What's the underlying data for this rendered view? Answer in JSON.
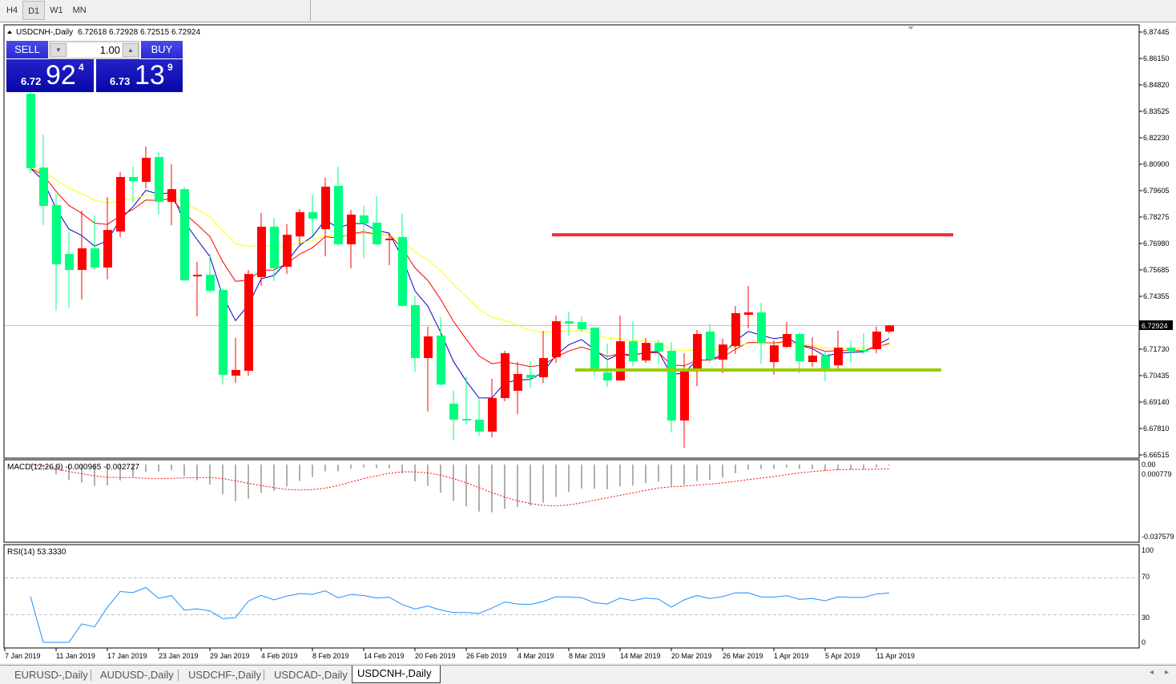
{
  "toolbar": {
    "timeframes": [
      "H4",
      "D1",
      "W1",
      "MN"
    ],
    "selected": "D1"
  },
  "chart": {
    "header": "USDCNH-,Daily",
    "ohlc": "6.72618 6.72928 6.72515 6.72924",
    "current_price_label": "6.72924",
    "price_axis": [
      "6.87445",
      "6.86150",
      "6.84820",
      "6.83525",
      "6.82230",
      "6.80900",
      "6.79605",
      "6.78275",
      "6.76980",
      "6.75685",
      "6.74355",
      "6.71730",
      "6.70435",
      "6.69140",
      "6.67810",
      "6.66515"
    ],
    "date_axis": [
      "7 Jan 2019",
      "11 Jan 2019",
      "17 Jan 2019",
      "23 Jan 2019",
      "29 Jan 2019",
      "4 Feb 2019",
      "8 Feb 2019",
      "14 Feb 2019",
      "20 Feb 2019",
      "26 Feb 2019",
      "4 Mar 2019",
      "8 Mar 2019",
      "14 Mar 2019",
      "20 Mar 2019",
      "26 Mar 2019",
      "1 Apr 2019",
      "5 Apr 2019",
      "11 Apr 2019"
    ],
    "colors": {
      "up": "#ff0000",
      "down": "#00ff7f",
      "ma_fast": "#0000cc",
      "ma_mid": "#ff0000",
      "ma_slow": "#ffff00",
      "resistance": "#f03030",
      "support": "#99cc00",
      "macd_hist": "#b0b0b0",
      "macd_signal": "#ff0000",
      "rsi": "#1e90ff"
    },
    "horizontal_lines": [
      {
        "price": 6.7741,
        "color": "#f03030"
      },
      {
        "price": 6.7072,
        "color": "#99cc00"
      }
    ],
    "candles": [
      [
        6.8439,
        6.8503,
        6.8047,
        6.8071
      ],
      [
        6.8074,
        6.8237,
        6.7789,
        6.7884
      ],
      [
        6.7888,
        6.7944,
        6.7365,
        6.7595
      ],
      [
        6.7646,
        6.7757,
        6.7381,
        6.7567
      ],
      [
        6.7567,
        6.786,
        6.742,
        6.7674
      ],
      [
        6.7674,
        6.7837,
        6.7571,
        6.7579
      ],
      [
        6.7579,
        6.7928,
        6.752,
        6.7765
      ],
      [
        6.7757,
        6.8051,
        6.773,
        6.8027
      ],
      [
        6.8027,
        6.8078,
        6.79,
        6.8007
      ],
      [
        6.8003,
        6.8178,
        6.7971,
        6.8122
      ],
      [
        6.8126,
        6.815,
        6.7841,
        6.7904
      ],
      [
        6.7904,
        6.809,
        6.7789,
        6.7967
      ],
      [
        6.7967,
        6.7979,
        6.7512,
        6.7516
      ],
      [
        6.7536,
        6.7607,
        6.7337,
        6.7543
      ],
      [
        6.7543,
        6.7646,
        6.7452,
        6.7464
      ],
      [
        6.7468,
        6.7476,
        6.7,
        6.7048
      ],
      [
        6.7044,
        6.723,
        6.7008,
        6.7072
      ],
      [
        6.7068,
        6.7567,
        6.7044,
        6.7547
      ],
      [
        6.7532,
        6.7849,
        6.7488,
        6.7781
      ],
      [
        6.7781,
        6.7825,
        6.7512,
        6.7575
      ],
      [
        6.7583,
        6.7793,
        6.7547,
        6.7741
      ],
      [
        6.7733,
        6.7868,
        6.7682,
        6.7853
      ],
      [
        6.7853,
        6.794,
        6.7737,
        6.7821
      ],
      [
        6.7769,
        6.8023,
        6.7634,
        6.7979
      ],
      [
        6.7983,
        6.8078,
        6.7686,
        6.7694
      ],
      [
        6.7694,
        6.7864,
        6.7575,
        6.7841
      ],
      [
        6.7837,
        6.7884,
        6.7626,
        6.7797
      ],
      [
        6.7801,
        6.7932,
        6.769,
        6.7694
      ],
      [
        6.7718,
        6.7749,
        6.7591,
        6.7722
      ],
      [
        6.773,
        6.7845,
        6.7385,
        6.7389
      ],
      [
        6.7393,
        6.7436,
        6.7064,
        6.7131
      ],
      [
        6.7131,
        6.7286,
        6.6866,
        6.7238
      ],
      [
        6.7242,
        6.7333,
        6.6996,
        6.7
      ],
      [
        6.6905,
        6.6969,
        6.6723,
        6.6826
      ],
      [
        6.683,
        6.704,
        6.6802,
        6.6822
      ],
      [
        6.6826,
        6.6929,
        6.6747,
        6.6767
      ],
      [
        6.6767,
        6.7028,
        6.6739,
        6.6933
      ],
      [
        6.6933,
        6.7167,
        6.6917,
        6.7155
      ],
      [
        6.6969,
        6.7111,
        6.6854,
        6.7052
      ],
      [
        6.7048,
        6.7115,
        6.6981,
        6.7032
      ],
      [
        6.7036,
        6.7266,
        6.7008,
        6.7131
      ],
      [
        6.7135,
        6.7341,
        6.7107,
        6.7313
      ],
      [
        6.7313,
        6.7361,
        6.7242,
        6.7301
      ],
      [
        6.7309,
        6.7337,
        6.7262,
        6.7274
      ],
      [
        6.7282,
        6.7282,
        6.7044,
        6.7076
      ],
      [
        6.706,
        6.7202,
        6.6988,
        6.702
      ],
      [
        6.702,
        6.7341,
        6.702,
        6.7214
      ],
      [
        6.7214,
        6.7313,
        6.7091,
        6.7115
      ],
      [
        6.7119,
        6.723,
        6.7107,
        6.7206
      ],
      [
        6.7206,
        6.7222,
        6.7103,
        6.7163
      ],
      [
        6.7167,
        6.721,
        6.6763,
        6.6822
      ],
      [
        6.6822,
        6.7155,
        6.6687,
        6.7072
      ],
      [
        6.7072,
        6.727,
        6.6992,
        6.725
      ],
      [
        6.7262,
        6.7298,
        6.7107,
        6.7123
      ],
      [
        6.7123,
        6.7226,
        6.7056,
        6.7198
      ],
      [
        6.719,
        6.7389,
        6.7151,
        6.7353
      ],
      [
        6.7345,
        6.7488,
        6.7278,
        6.7357
      ],
      [
        6.7357,
        6.7404,
        6.7103,
        6.7206
      ],
      [
        6.7111,
        6.7218,
        6.7048,
        6.7194
      ],
      [
        6.7186,
        6.7309,
        6.7182,
        6.725
      ],
      [
        6.725,
        6.7258,
        6.7056,
        6.7115
      ],
      [
        6.7111,
        6.7234,
        6.7087,
        6.7143
      ],
      [
        6.7143,
        6.7167,
        6.7016,
        6.7068
      ],
      [
        6.7095,
        6.7266,
        6.7079,
        6.7182
      ],
      [
        6.7182,
        6.7218,
        6.7107,
        6.7167
      ],
      [
        6.7171,
        6.7254,
        6.7151,
        6.7167
      ],
      [
        6.7175,
        6.7286,
        6.7155,
        6.7262
      ],
      [
        6.72618,
        6.72928,
        6.72515,
        6.72924
      ]
    ]
  },
  "macd": {
    "label": "MACD(12,26,9) -0.000965 -0.002727",
    "axis": [
      "0.00",
      "0.000779",
      "-0.037579"
    ]
  },
  "rsi": {
    "label": "RSI(14) 53.3330",
    "axis": [
      "100",
      "70",
      "30",
      "0"
    ],
    "levels": [
      70,
      30
    ]
  },
  "trade_panel": {
    "sell_label": "SELL",
    "buy_label": "BUY",
    "lot": "1.00",
    "sell": {
      "small": "6.72",
      "big": "92",
      "pip": "4"
    },
    "buy": {
      "small": "6.73",
      "big": "13",
      "pip": "9"
    }
  },
  "tabs": [
    "EURUSD-,Daily",
    "AUDUSD-,Daily",
    "USDCHF-,Daily",
    "USDCAD-,Daily",
    "USDCNH-,Daily"
  ],
  "active_tab": "USDCNH-,Daily"
}
